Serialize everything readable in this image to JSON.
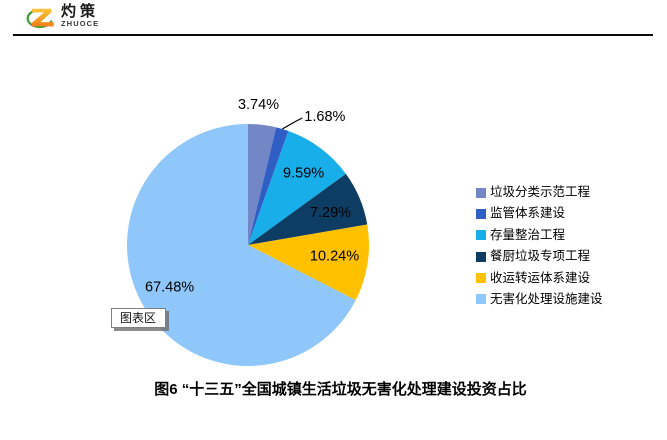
{
  "header": {
    "logo_cn": "灼策",
    "logo_en": "ZHUOCE"
  },
  "logo_colors": {
    "z_top": "#FFC53A",
    "z_bottom": "#EE7F17",
    "arc": "#3E9C35"
  },
  "chart_data": {
    "type": "pie",
    "title": "图6 “十三五”全国城镇生活垃圾无害化处理建设投资占比",
    "legend_position": "right",
    "start_angle_deg": 0,
    "direction": "clockwise",
    "value_format": "percent",
    "label_color": "#000000",
    "slices": [
      {
        "label": "垃圾分类示范工程",
        "value": 3.74,
        "display": "3.74%",
        "color": "#7387C7",
        "label_placement": "outside",
        "label_offset": [
          -6,
          0
        ]
      },
      {
        "label": "监管体系建设",
        "value": 1.68,
        "display": "1.68%",
        "color": "#2F5EC4",
        "label_placement": "outside-leader",
        "label_offset": [
          0,
          0
        ]
      },
      {
        "label": "存量整治工程",
        "value": 9.59,
        "display": "9.59%",
        "color": "#17AEEA",
        "label_placement": "inside",
        "label_offset": [
          2,
          0
        ]
      },
      {
        "label": "餐厨垃圾专项工程",
        "value": 7.29,
        "display": "7.29%",
        "color": "#0E3D64",
        "label_placement": "inside",
        "label_offset": [
          0,
          3
        ]
      },
      {
        "label": "收运转运体系建设",
        "value": 10.24,
        "display": "10.24%",
        "color": "#FFC000",
        "label_placement": "inside",
        "label_offset": [
          -2,
          -2
        ]
      },
      {
        "label": "无害化处理设施建设",
        "value": 67.48,
        "display": "67.48%",
        "color": "#90C7FA",
        "label_placement": "inside",
        "label_offset": [
          -2,
          -4
        ]
      }
    ]
  },
  "tooltip": {
    "text": "图表区"
  }
}
